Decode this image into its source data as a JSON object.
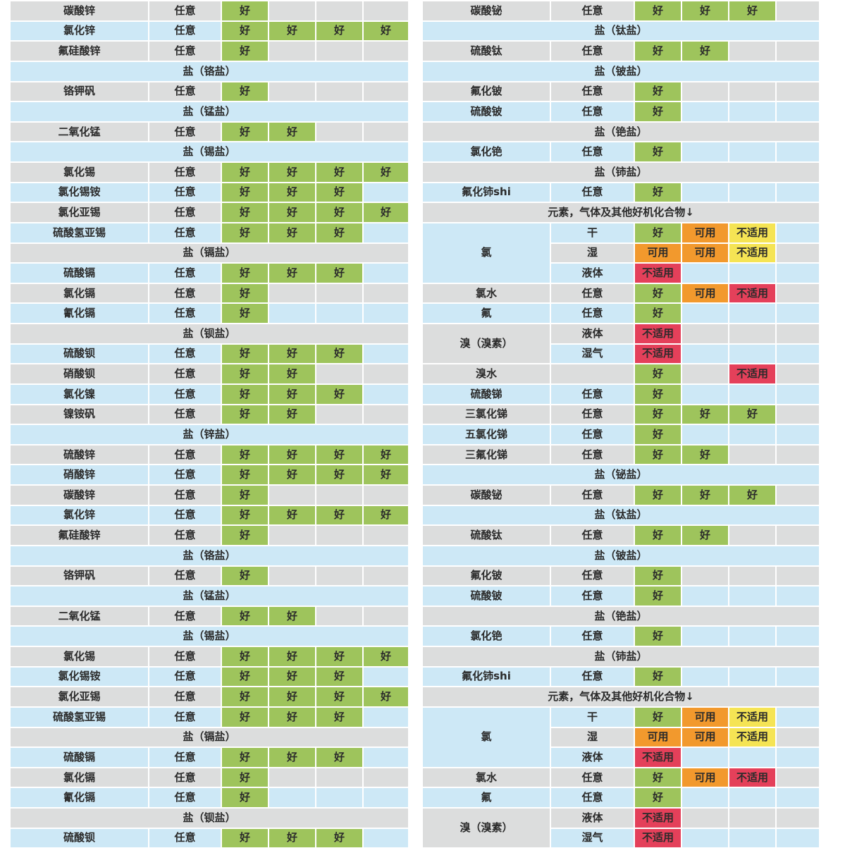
{
  "colors": {
    "row_gray": "#dcdddd",
    "row_blue": "#cde8f6",
    "good": "#9ec45c",
    "usable": "#f2992d",
    "na_yellow": "#f5e454",
    "na_red": "#e4405a",
    "cell_text": "#2b2b2b"
  },
  "ratings_legend": {
    "G": {
      "label": "好",
      "bg": "good"
    },
    "U": {
      "label": "可用",
      "bg": "usable"
    },
    "NY": {
      "label": "不适用",
      "bg": "na_yellow"
    },
    "NR": {
      "label": "不适用",
      "bg": "na_red"
    }
  },
  "left_table": {
    "rows": [
      {
        "name": "碳酸锌",
        "cond": "任意",
        "ratings": [
          "G",
          "",
          "",
          ""
        ]
      },
      {
        "name": "氯化锌",
        "cond": "任意",
        "ratings": [
          "G",
          "G",
          "G",
          "G"
        ]
      },
      {
        "name": "氟硅酸锌",
        "cond": "任意",
        "ratings": [
          "G",
          "",
          "",
          ""
        ]
      },
      {
        "header": "盐（铬盐）"
      },
      {
        "name": "铬钾矾",
        "cond": "任意",
        "ratings": [
          "G",
          "",
          "",
          ""
        ]
      },
      {
        "header": "盐（锰盐）"
      },
      {
        "name": "二氧化锰",
        "cond": "任意",
        "ratings": [
          "G",
          "G",
          "",
          ""
        ]
      },
      {
        "header": "盐（锡盐）"
      },
      {
        "name": "氯化锡",
        "cond": "任意",
        "ratings": [
          "G",
          "G",
          "G",
          "G"
        ]
      },
      {
        "name": "氯化锡铵",
        "cond": "任意",
        "ratings": [
          "G",
          "G",
          "G",
          ""
        ]
      },
      {
        "name": "氯化亚锡",
        "cond": "任意",
        "ratings": [
          "G",
          "G",
          "G",
          "G"
        ]
      },
      {
        "name": "硫酸氢亚锡",
        "cond": "任意",
        "ratings": [
          "G",
          "G",
          "G",
          ""
        ]
      },
      {
        "header": "盐（镉盐）"
      },
      {
        "name": "硫酸镉",
        "cond": "任意",
        "ratings": [
          "G",
          "G",
          "G",
          ""
        ]
      },
      {
        "name": "氯化镉",
        "cond": "任意",
        "ratings": [
          "G",
          "",
          "",
          ""
        ]
      },
      {
        "name": "氰化镉",
        "cond": "任意",
        "ratings": [
          "G",
          "",
          "",
          ""
        ]
      },
      {
        "header": "盐（钡盐）"
      },
      {
        "name": "硫酸钡",
        "cond": "任意",
        "ratings": [
          "G",
          "G",
          "G",
          ""
        ]
      },
      {
        "name": "硝酸钡",
        "cond": "任意",
        "ratings": [
          "G",
          "G",
          "",
          ""
        ]
      },
      {
        "name": "氯化镍",
        "cond": "任意",
        "ratings": [
          "G",
          "G",
          "G",
          ""
        ]
      },
      {
        "name": "镍铵矾",
        "cond": "任意",
        "ratings": [
          "G",
          "G",
          "",
          ""
        ]
      },
      {
        "header": "盐（锌盐）"
      },
      {
        "name": "硫酸锌",
        "cond": "任意",
        "ratings": [
          "G",
          "G",
          "G",
          "G"
        ]
      },
      {
        "name": "硝酸锌",
        "cond": "任意",
        "ratings": [
          "G",
          "G",
          "G",
          "G"
        ]
      },
      {
        "name": "碳酸锌",
        "cond": "任意",
        "ratings": [
          "G",
          "",
          "",
          ""
        ]
      },
      {
        "name": "氯化锌",
        "cond": "任意",
        "ratings": [
          "G",
          "G",
          "G",
          "G"
        ]
      },
      {
        "name": "氟硅酸锌",
        "cond": "任意",
        "ratings": [
          "G",
          "",
          "",
          ""
        ]
      },
      {
        "header": "盐（铬盐）"
      },
      {
        "name": "铬钾矾",
        "cond": "任意",
        "ratings": [
          "G",
          "",
          "",
          ""
        ]
      },
      {
        "header": "盐（锰盐）"
      },
      {
        "name": "二氧化锰",
        "cond": "任意",
        "ratings": [
          "G",
          "G",
          "",
          ""
        ]
      },
      {
        "header": "盐（锡盐）"
      },
      {
        "name": "氯化锡",
        "cond": "任意",
        "ratings": [
          "G",
          "G",
          "G",
          "G"
        ]
      },
      {
        "name": "氯化锡铵",
        "cond": "任意",
        "ratings": [
          "G",
          "G",
          "G",
          ""
        ]
      },
      {
        "name": "氯化亚锡",
        "cond": "任意",
        "ratings": [
          "G",
          "G",
          "G",
          "G"
        ]
      },
      {
        "name": "硫酸氢亚锡",
        "cond": "任意",
        "ratings": [
          "G",
          "G",
          "G",
          ""
        ]
      },
      {
        "header": "盐（镉盐）"
      },
      {
        "name": "硫酸镉",
        "cond": "任意",
        "ratings": [
          "G",
          "G",
          "G",
          ""
        ]
      },
      {
        "name": "氯化镉",
        "cond": "任意",
        "ratings": [
          "G",
          "",
          "",
          ""
        ]
      },
      {
        "name": "氰化镉",
        "cond": "任意",
        "ratings": [
          "G",
          "",
          "",
          ""
        ]
      },
      {
        "header": "盐（钡盐）"
      },
      {
        "name": "硫酸钡",
        "cond": "任意",
        "ratings": [
          "G",
          "G",
          "G",
          ""
        ]
      }
    ]
  },
  "right_table": {
    "rows": [
      {
        "name": "碳酸铋",
        "cond": "任意",
        "ratings": [
          "G",
          "G",
          "G",
          ""
        ]
      },
      {
        "header": "盐（钛盐）"
      },
      {
        "name": "硫酸钛",
        "cond": "任意",
        "ratings": [
          "G",
          "G",
          "",
          ""
        ]
      },
      {
        "header": "盐（铍盐）"
      },
      {
        "name": "氟化铍",
        "cond": "任意",
        "ratings": [
          "G",
          "",
          "",
          ""
        ]
      },
      {
        "name": "硫酸铍",
        "cond": "任意",
        "ratings": [
          "G",
          "",
          "",
          ""
        ]
      },
      {
        "header": "盐（铯盐）"
      },
      {
        "name": "氯化铯",
        "cond": "任意",
        "ratings": [
          "G",
          "",
          "",
          ""
        ]
      },
      {
        "header": "盐（铈盐）"
      },
      {
        "name": "氟化铈shi",
        "cond": "任意",
        "ratings": [
          "G",
          "",
          "",
          ""
        ]
      },
      {
        "header": "元素，气体及其他好机化合物↓"
      },
      {
        "name": "氯",
        "span": 3,
        "cond": "干",
        "ratings": [
          "G",
          "U",
          "NY",
          ""
        ]
      },
      {
        "cond": "湿",
        "ratings": [
          "U",
          "U",
          "NY",
          ""
        ]
      },
      {
        "cond": "液体",
        "ratings": [
          "NR",
          "",
          "",
          ""
        ]
      },
      {
        "name": "氯水",
        "cond": "任意",
        "ratings": [
          "G",
          "U",
          "NR",
          ""
        ]
      },
      {
        "name": "氟",
        "cond": "任意",
        "ratings": [
          "G",
          "",
          "",
          ""
        ]
      },
      {
        "name": "溴（溴素）",
        "span": 2,
        "cond": "液体",
        "ratings": [
          "NR",
          "",
          "",
          ""
        ]
      },
      {
        "cond": "湿气",
        "ratings": [
          "NR",
          "",
          "",
          ""
        ]
      },
      {
        "name": "溴水",
        "cond": "",
        "ratings": [
          "G",
          "",
          "NR",
          ""
        ]
      },
      {
        "name": "硫酸锑",
        "cond": "任意",
        "ratings": [
          "G",
          "",
          "",
          ""
        ]
      },
      {
        "name": "三氯化锑",
        "cond": "任意",
        "ratings": [
          "G",
          "G",
          "G",
          ""
        ]
      },
      {
        "name": "五氯化锑",
        "cond": "任意",
        "ratings": [
          "G",
          "",
          "",
          ""
        ]
      },
      {
        "name": "三氟化锑",
        "cond": "任意",
        "ratings": [
          "G",
          "G",
          "",
          ""
        ]
      },
      {
        "header": "盐（铋盐）"
      },
      {
        "name": "碳酸铋",
        "cond": "任意",
        "ratings": [
          "G",
          "G",
          "G",
          ""
        ]
      },
      {
        "header": "盐（钛盐）"
      },
      {
        "name": "硫酸钛",
        "cond": "任意",
        "ratings": [
          "G",
          "G",
          "",
          ""
        ]
      },
      {
        "header": "盐（铍盐）"
      },
      {
        "name": "氟化铍",
        "cond": "任意",
        "ratings": [
          "G",
          "",
          "",
          ""
        ]
      },
      {
        "name": "硫酸铍",
        "cond": "任意",
        "ratings": [
          "G",
          "",
          "",
          ""
        ]
      },
      {
        "header": "盐（铯盐）"
      },
      {
        "name": "氯化铯",
        "cond": "任意",
        "ratings": [
          "G",
          "",
          "",
          ""
        ]
      },
      {
        "header": "盐（铈盐）"
      },
      {
        "name": "氟化铈shi",
        "cond": "任意",
        "ratings": [
          "G",
          "",
          "",
          ""
        ]
      },
      {
        "header": "元素，气体及其他好机化合物↓"
      },
      {
        "name": "氯",
        "span": 3,
        "cond": "干",
        "ratings": [
          "G",
          "U",
          "NY",
          ""
        ]
      },
      {
        "cond": "湿",
        "ratings": [
          "U",
          "U",
          "NY",
          ""
        ]
      },
      {
        "cond": "液体",
        "ratings": [
          "NR",
          "",
          "",
          ""
        ]
      },
      {
        "name": "氯水",
        "cond": "任意",
        "ratings": [
          "G",
          "U",
          "NR",
          ""
        ]
      },
      {
        "name": "氟",
        "cond": "任意",
        "ratings": [
          "G",
          "",
          "",
          ""
        ]
      },
      {
        "name": "溴（溴素）",
        "span": 2,
        "cond": "液体",
        "ratings": [
          "NR",
          "",
          "",
          ""
        ]
      },
      {
        "cond": "湿气",
        "ratings": [
          "NR",
          "",
          "",
          ""
        ]
      }
    ]
  }
}
